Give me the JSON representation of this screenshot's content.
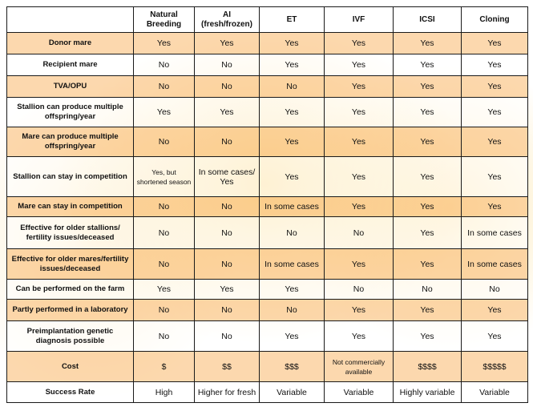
{
  "columns": [
    "",
    "Natural Breeding",
    "AI (fresh/frozen)",
    "ET",
    "IVF",
    "ICSI",
    "Cloning"
  ],
  "column_lines": [
    [
      ""
    ],
    [
      "Natural",
      "Breeding"
    ],
    [
      "AI",
      "(fresh/frozen)"
    ],
    [
      "ET"
    ],
    [
      "IVF"
    ],
    [
      "ICSI"
    ],
    [
      "Cloning"
    ]
  ],
  "rows": [
    {
      "label": "Donor mare",
      "values": [
        "Yes",
        "Yes",
        "Yes",
        "Yes",
        "Yes",
        "Yes"
      ]
    },
    {
      "label": "Recipient mare",
      "values": [
        "No",
        "No",
        "Yes",
        "Yes",
        "Yes",
        "Yes"
      ]
    },
    {
      "label": "TVA/OPU",
      "values": [
        "No",
        "No",
        "No",
        "Yes",
        "Yes",
        "Yes"
      ]
    },
    {
      "label": "Stallion can produce multiple offspring/year",
      "values": [
        "Yes",
        "Yes",
        "Yes",
        "Yes",
        "Yes",
        "Yes"
      ]
    },
    {
      "label": "Mare can produce multiple offspring/year",
      "values": [
        "No",
        "No",
        "Yes",
        "Yes",
        "Yes",
        "Yes"
      ]
    },
    {
      "label": "Stallion can stay in competition",
      "values": [
        "Yes, but shortened season",
        "In some cases/ Yes",
        "Yes",
        "Yes",
        "Yes",
        "Yes"
      ]
    },
    {
      "label": "Mare can stay in competition",
      "values": [
        "No",
        "No",
        "In some cases",
        "Yes",
        "Yes",
        "Yes"
      ]
    },
    {
      "label": "Effective for older stallions/ fertility issues/deceased",
      "values": [
        "No",
        "No",
        "No",
        "No",
        "Yes",
        "In some cases"
      ]
    },
    {
      "label": "Effective for older mares/fertility issues/deceased",
      "values": [
        "No",
        "No",
        "In some cases",
        "Yes",
        "Yes",
        "In some cases"
      ]
    },
    {
      "label": "Can be performed on the farm",
      "values": [
        "Yes",
        "Yes",
        "Yes",
        "No",
        "No",
        "No"
      ]
    },
    {
      "label": "Partly performed in a laboratory",
      "values": [
        "No",
        "No",
        "No",
        "Yes",
        "Yes",
        "Yes"
      ]
    },
    {
      "label": "Preimplantation genetic diagnosis possible",
      "values": [
        "No",
        "No",
        "Yes",
        "Yes",
        "Yes",
        "Yes"
      ]
    },
    {
      "label": "Cost",
      "values": [
        "$",
        "$$",
        "$$$",
        "Not commercially available",
        "$$$$",
        "$$$$$"
      ]
    },
    {
      "label": "Success Rate",
      "values": [
        "High",
        "Higher for fresh",
        "Variable",
        "Variable",
        "Highly variable",
        "Variable"
      ]
    }
  ]
}
